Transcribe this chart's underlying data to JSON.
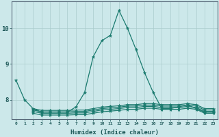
{
  "xlabel": "Humidex (Indice chaleur)",
  "ylabel": "",
  "bg_color": "#cce8ea",
  "line_color": "#1a7a6e",
  "grid_color": "#aacccc",
  "xlim": [
    -0.5,
    23.5
  ],
  "ylim": [
    7.45,
    10.75
  ],
  "yticks": [
    8,
    9,
    10
  ],
  "xticks": [
    0,
    1,
    2,
    3,
    4,
    5,
    6,
    7,
    8,
    9,
    10,
    11,
    12,
    13,
    14,
    15,
    16,
    17,
    18,
    19,
    20,
    21,
    22,
    23
  ],
  "lines": [
    {
      "x": [
        0,
        1,
        2,
        3,
        4,
        5,
        6,
        7,
        8,
        9,
        10,
        11,
        12,
        13,
        14,
        15,
        16,
        17,
        18,
        19,
        20,
        21,
        22,
        23
      ],
      "y": [
        8.55,
        8.0,
        7.75,
        7.65,
        7.65,
        7.65,
        7.65,
        7.8,
        8.2,
        9.2,
        9.65,
        9.8,
        10.5,
        10.0,
        9.4,
        8.75,
        8.2,
        7.75,
        7.75,
        7.8,
        7.85,
        7.75,
        7.65,
        7.65
      ]
    },
    {
      "x": [
        2,
        3,
        4,
        5,
        6,
        7,
        8,
        9,
        10,
        11,
        12,
        13,
        14,
        15,
        16,
        17,
        18,
        19,
        20,
        21,
        22,
        23
      ],
      "y": [
        7.62,
        7.57,
        7.57,
        7.57,
        7.57,
        7.58,
        7.58,
        7.62,
        7.66,
        7.68,
        7.7,
        7.73,
        7.73,
        7.76,
        7.76,
        7.73,
        7.73,
        7.73,
        7.76,
        7.73,
        7.62,
        7.62
      ]
    },
    {
      "x": [
        2,
        3,
        4,
        5,
        6,
        7,
        8,
        9,
        10,
        11,
        12,
        13,
        14,
        15,
        16,
        17,
        18,
        19,
        20,
        21,
        22,
        23
      ],
      "y": [
        7.67,
        7.62,
        7.62,
        7.62,
        7.62,
        7.63,
        7.63,
        7.67,
        7.71,
        7.73,
        7.75,
        7.78,
        7.78,
        7.81,
        7.81,
        7.78,
        7.78,
        7.78,
        7.81,
        7.78,
        7.67,
        7.67
      ]
    },
    {
      "x": [
        2,
        3,
        4,
        5,
        6,
        7,
        8,
        9,
        10,
        11,
        12,
        13,
        14,
        15,
        16,
        17,
        18,
        19,
        20,
        21,
        22,
        23
      ],
      "y": [
        7.71,
        7.66,
        7.66,
        7.66,
        7.66,
        7.67,
        7.67,
        7.71,
        7.75,
        7.77,
        7.79,
        7.82,
        7.82,
        7.85,
        7.85,
        7.82,
        7.82,
        7.82,
        7.85,
        7.82,
        7.71,
        7.71
      ]
    },
    {
      "x": [
        2,
        3,
        4,
        5,
        6,
        7,
        8,
        9,
        10,
        11,
        12,
        13,
        14,
        15,
        16,
        17,
        18,
        19,
        20,
        21,
        22,
        23
      ],
      "y": [
        7.75,
        7.7,
        7.7,
        7.7,
        7.7,
        7.71,
        7.71,
        7.75,
        7.79,
        7.81,
        7.83,
        7.86,
        7.86,
        7.89,
        7.89,
        7.86,
        7.86,
        7.86,
        7.89,
        7.86,
        7.75,
        7.75
      ]
    }
  ]
}
